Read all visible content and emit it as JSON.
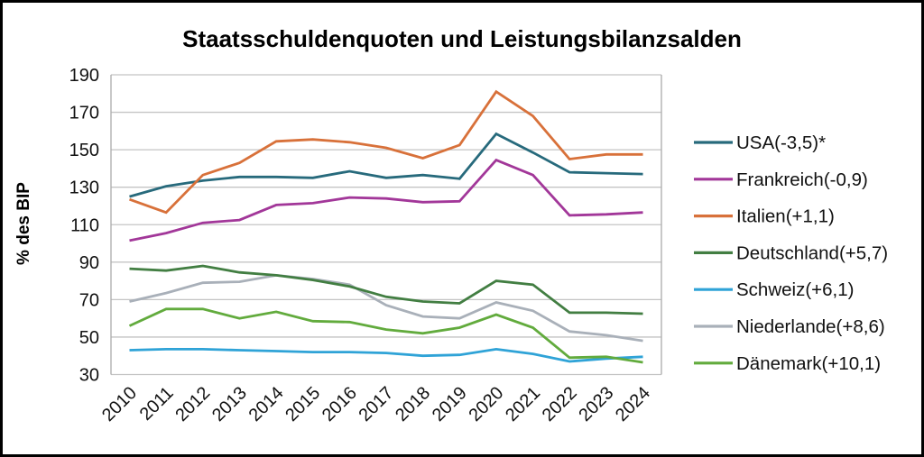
{
  "chart_data": {
    "type": "line",
    "title": "Staatsschuldenquoten und Leistungsbilanzsalden",
    "xlabel": "",
    "ylabel": "% des BIP",
    "ylim": [
      30,
      190
    ],
    "ytick_step": 20,
    "grid": true,
    "legend_position": "right",
    "categories": [
      "2010",
      "2011",
      "2012",
      "2013",
      "2014",
      "2015",
      "2016",
      "2017",
      "2018",
      "2019",
      "2020",
      "2021",
      "2022",
      "2023",
      "2024"
    ],
    "series": [
      {
        "name": "USA(-3,5)*",
        "color": "#276A7C",
        "values": [
          125,
          130.5,
          133.5,
          135.5,
          135.5,
          135,
          138.5,
          135,
          136.5,
          134.5,
          158.5,
          148.5,
          138,
          137.5,
          137
        ]
      },
      {
        "name": "Frankreich(-0,9)",
        "color": "#A23799",
        "values": [
          101.5,
          105.5,
          111,
          112.5,
          120.5,
          121.5,
          124.5,
          124,
          122,
          122.5,
          144.5,
          136.5,
          115,
          115.5,
          116.5
        ]
      },
      {
        "name": "Italien(+1,1)",
        "color": "#D8713A",
        "values": [
          123.5,
          116.5,
          136.5,
          143,
          154.5,
          155.5,
          154,
          151,
          145.5,
          152.5,
          181,
          168,
          145,
          147.5,
          147.5
        ]
      },
      {
        "name": "Deutschland(+5,7)",
        "color": "#427E42",
        "values": [
          86.5,
          85.5,
          88,
          84.5,
          83,
          80.5,
          77,
          71.5,
          69,
          68,
          80,
          78,
          63,
          63,
          62.5
        ]
      },
      {
        "name": "Schweiz(+6,1)",
        "color": "#2FA3D7",
        "values": [
          43,
          43.5,
          43.5,
          43,
          42.5,
          42,
          42,
          41.5,
          40,
          40.5,
          43.5,
          41,
          37,
          38.5,
          39.5
        ]
      },
      {
        "name": "Niederlande(+8,6)",
        "color": "#A9B0B9",
        "values": [
          69,
          73.5,
          79,
          79.5,
          83,
          81,
          78,
          67,
          61,
          60,
          68.5,
          64,
          53,
          51,
          48
        ]
      },
      {
        "name": "Dänemark(+10,1)",
        "color": "#62AB3D",
        "values": [
          56,
          65,
          65,
          60,
          63.5,
          58.5,
          58,
          54,
          52,
          55,
          62,
          55,
          39,
          39.5,
          36.5
        ]
      }
    ],
    "colors": {
      "grid": "#C4C4C4",
      "plot_border": "#ABABAB",
      "text": "#111111"
    }
  }
}
